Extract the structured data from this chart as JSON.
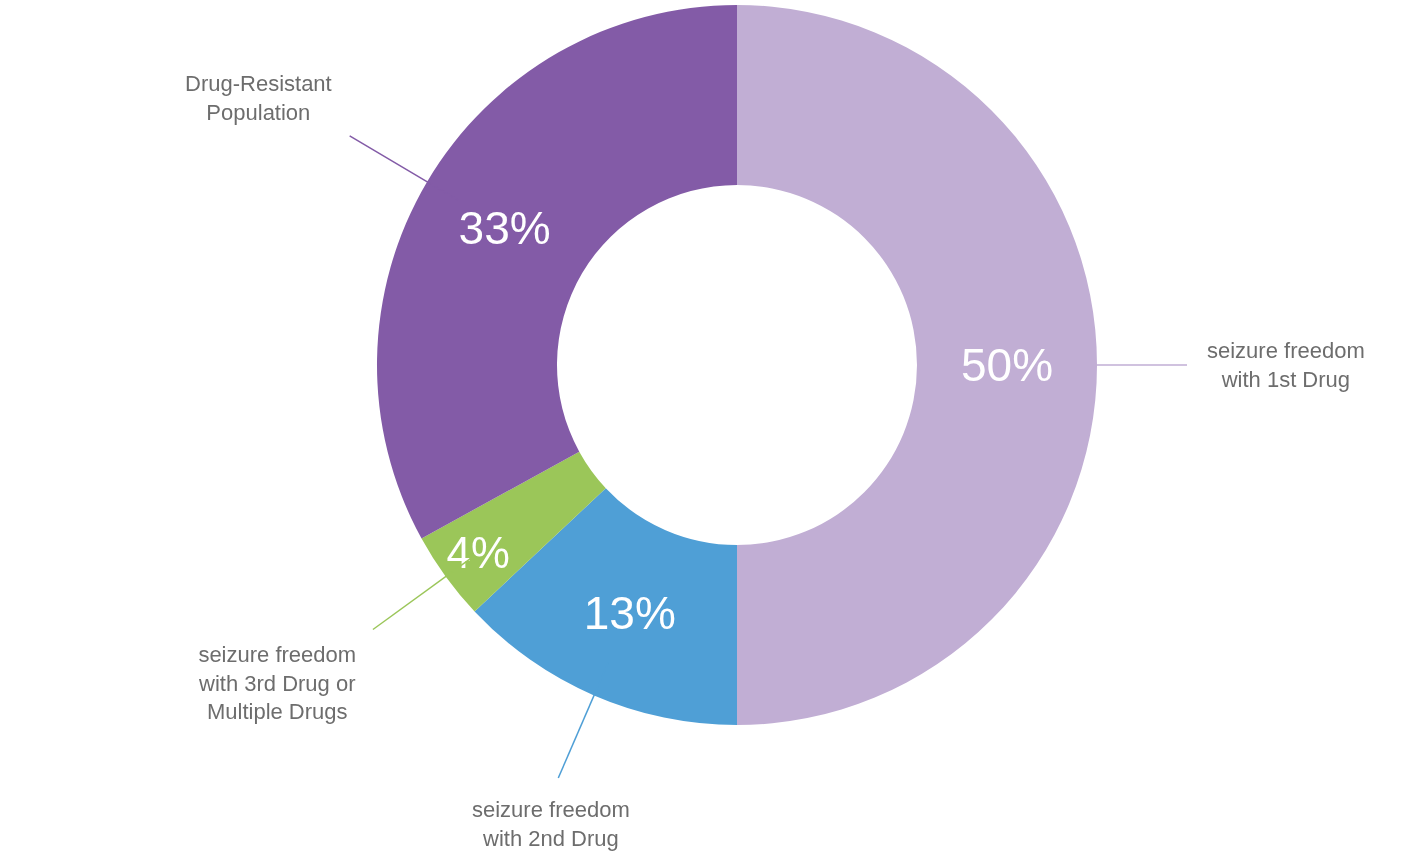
{
  "chart_data": {
    "type": "donut",
    "categories": [
      "seizure freedom with 1st Drug",
      "seizure freedom with 2nd Drug",
      "seizure freedom with 3rd Drug or Multiple Drugs",
      "Drug-Resistant Population"
    ],
    "values": [
      50,
      13,
      4,
      33
    ],
    "colors": [
      "#c1aed4",
      "#4f9fd6",
      "#9bc659",
      "#835ba7"
    ],
    "value_labels": [
      "50%",
      "13%",
      "4%",
      "33%"
    ],
    "legend": false
  }
}
